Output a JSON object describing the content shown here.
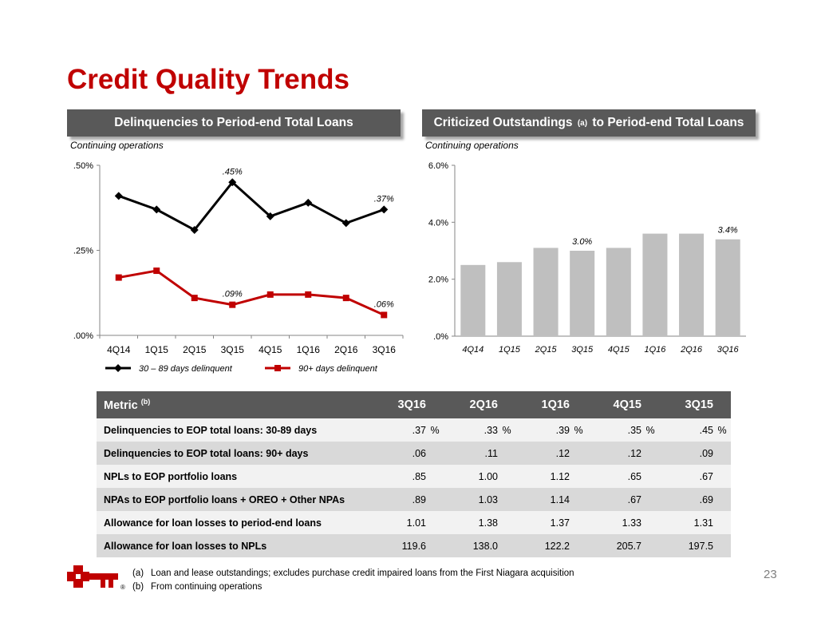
{
  "title": "Credit Quality Trends",
  "left_panel": {
    "banner": "Delinquencies to Period-end Total Loans",
    "note": "Continuing operations"
  },
  "right_panel": {
    "banner_pre": "Criticized Outstandings",
    "banner_sup": "(a)",
    "banner_post": "to Period-end Total Loans",
    "note": "Continuing operations"
  },
  "colors": {
    "title_red": "#c00000",
    "banner_gray": "#595959",
    "series_black": "#000000",
    "series_red": "#c00000",
    "bar_gray": "#bfbfbf"
  },
  "chart_data": [
    {
      "type": "line",
      "categories": [
        "4Q14",
        "1Q15",
        "2Q15",
        "3Q15",
        "4Q15",
        "1Q16",
        "2Q16",
        "3Q16"
      ],
      "ylim": [
        0,
        0.5
      ],
      "yticks": [
        0,
        0.25,
        0.5
      ],
      "ytick_labels": [
        ".00%",
        ".25%",
        ".50%"
      ],
      "series": [
        {
          "name": "30 – 89 days delinquent",
          "color": "#000000",
          "marker": "diamond",
          "values": [
            0.41,
            0.37,
            0.31,
            0.45,
            0.35,
            0.39,
            0.33,
            0.37
          ],
          "labels": [
            null,
            null,
            null,
            ".45%",
            null,
            null,
            null,
            ".37%"
          ]
        },
        {
          "name": "90+ days delinquent",
          "color": "#c00000",
          "marker": "square",
          "values": [
            0.17,
            0.19,
            0.11,
            0.09,
            0.12,
            0.12,
            0.11,
            0.06
          ],
          "labels": [
            null,
            null,
            null,
            ".09%",
            null,
            null,
            null,
            ".06%"
          ]
        }
      ],
      "legend_position": "bottom"
    },
    {
      "type": "bar",
      "categories": [
        "4Q14",
        "1Q15",
        "2Q15",
        "3Q15",
        "4Q15",
        "1Q16",
        "2Q16",
        "3Q16"
      ],
      "values": [
        2.5,
        2.6,
        3.1,
        3.0,
        3.1,
        3.6,
        3.6,
        3.4
      ],
      "labels": [
        null,
        null,
        null,
        "3.0%",
        null,
        null,
        null,
        "3.4%"
      ],
      "ylim": [
        0,
        6
      ],
      "yticks": [
        0,
        2,
        4,
        6
      ],
      "ytick_labels": [
        ".0%",
        "2.0%",
        "4.0%",
        "6.0%"
      ]
    }
  ],
  "table": {
    "header_metric": "Metric",
    "header_sup": "(b)",
    "periods": [
      "3Q16",
      "2Q16",
      "1Q16",
      "4Q15",
      "3Q15"
    ],
    "rows": [
      {
        "label": "Delinquencies to EOP total loans: 30-89 days",
        "values": [
          ".37",
          ".33",
          ".39",
          ".35",
          ".45"
        ],
        "pct": "%"
      },
      {
        "label": "Delinquencies to EOP total loans: 90+ days",
        "values": [
          ".06",
          ".11",
          ".12",
          ".12",
          ".09"
        ],
        "pct": ""
      },
      {
        "label": "NPLs to EOP portfolio loans",
        "values": [
          ".85",
          "1.00",
          "1.12",
          ".65",
          ".67"
        ],
        "pct": ""
      },
      {
        "label": "NPAs to EOP portfolio loans + OREO + Other NPAs",
        "values": [
          ".89",
          "1.03",
          "1.14",
          ".67",
          ".69"
        ],
        "pct": ""
      },
      {
        "label": "Allowance for loan losses to period-end loans",
        "values": [
          "1.01",
          "1.38",
          "1.37",
          "1.33",
          "1.31"
        ],
        "pct": ""
      },
      {
        "label": "Allowance for loan losses to NPLs",
        "values": [
          "119.6",
          "138.0",
          "122.2",
          "205.7",
          "197.5"
        ],
        "pct": ""
      }
    ]
  },
  "footnotes": [
    {
      "mark": "(a)",
      "text": "Loan and lease outstandings; excludes purchase credit impaired loans from the First Niagara acquisition"
    },
    {
      "mark": "(b)",
      "text": "From continuing operations"
    }
  ],
  "page_number": "23",
  "logo": {
    "icon": "key-logo-icon",
    "registered": "®"
  }
}
